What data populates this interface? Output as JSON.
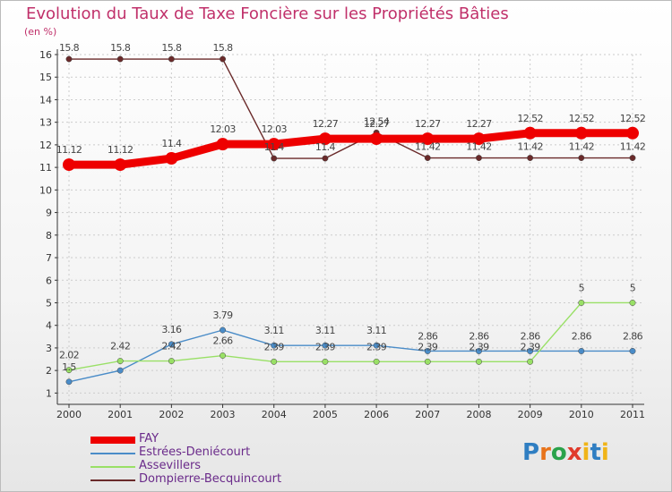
{
  "header": {
    "title": "Evolution du Taux de Taxe Foncière sur les Propriétés Bâties",
    "unit": "(en %)"
  },
  "logo": {
    "text": "Proxiti",
    "parts": [
      "P",
      "r",
      "o",
      "x",
      "i",
      "t",
      "i"
    ]
  },
  "colors": {
    "fay": "#ee0000",
    "estrees": "#4a8cc8",
    "assevillers": "#99e066",
    "dompierre": "#6a2a2a",
    "axis": "#333333",
    "grid": "#cccccc"
  },
  "chart_data": {
    "type": "line",
    "title": "Evolution du Taux de Taxe Foncière sur les Propriétés Bâties",
    "ylabel": "(en %)",
    "xlabel": "",
    "ylim": [
      0.5,
      16
    ],
    "yticks": [
      1,
      2,
      3,
      4,
      5,
      6,
      7,
      8,
      9,
      10,
      11,
      12,
      13,
      14,
      15,
      16
    ],
    "categories": [
      "2000",
      "2001",
      "2002",
      "2003",
      "2004",
      "2005",
      "2006",
      "2007",
      "2008",
      "2009",
      "2010",
      "2011"
    ],
    "legend_position": "bottom-left",
    "series": [
      {
        "name": "FAY",
        "key": "fay",
        "values": [
          11.12,
          11.12,
          11.4,
          12.03,
          12.03,
          12.27,
          12.27,
          12.27,
          12.27,
          12.52,
          12.52,
          12.52
        ],
        "labels": [
          "11.12",
          "11.12",
          "11.4",
          "12.03",
          "12.03",
          "12.27",
          "12.27",
          "12.27",
          "12.27",
          "12.52",
          "12.52",
          "12.52"
        ]
      },
      {
        "name": "Estrées-Deniécourt",
        "key": "estrees",
        "values": [
          1.5,
          2.0,
          3.16,
          3.79,
          3.11,
          3.11,
          3.11,
          2.86,
          2.86,
          2.86,
          2.86,
          2.86
        ],
        "labels": [
          "1.5",
          "",
          "3.16",
          "3.79",
          "3.11",
          "3.11",
          "3.11",
          "2.86",
          "2.86",
          "2.86",
          "2.86",
          "2.86"
        ]
      },
      {
        "name": "Assevillers",
        "key": "assevillers",
        "values": [
          2.02,
          2.42,
          2.42,
          2.66,
          2.39,
          2.39,
          2.39,
          2.39,
          2.39,
          2.39,
          5.0,
          5.0
        ],
        "labels": [
          "2.02",
          "2.42",
          "2.42",
          "2.66",
          "2.39",
          "2.39",
          "2.39",
          "2.39",
          "2.39",
          "2.39",
          "5",
          "5"
        ]
      },
      {
        "name": "Dompierre-Becquincourt",
        "key": "dompierre",
        "values": [
          15.8,
          15.8,
          15.8,
          15.8,
          11.4,
          11.4,
          12.54,
          11.42,
          11.42,
          11.42,
          11.42,
          11.42
        ],
        "labels": [
          "15.8",
          "15.8",
          "15.8",
          "15.8",
          "11.4",
          "11.4",
          "12.54",
          "11.42",
          "11.42",
          "11.42",
          "11.42",
          "11.42"
        ]
      }
    ]
  },
  "legend": [
    {
      "label": "FAY",
      "key": "fay"
    },
    {
      "label": "Estrées-Deniécourt",
      "key": "estrees"
    },
    {
      "label": "Assevillers",
      "key": "assevillers"
    },
    {
      "label": "Dompierre-Becquincourt",
      "key": "dompierre"
    }
  ]
}
